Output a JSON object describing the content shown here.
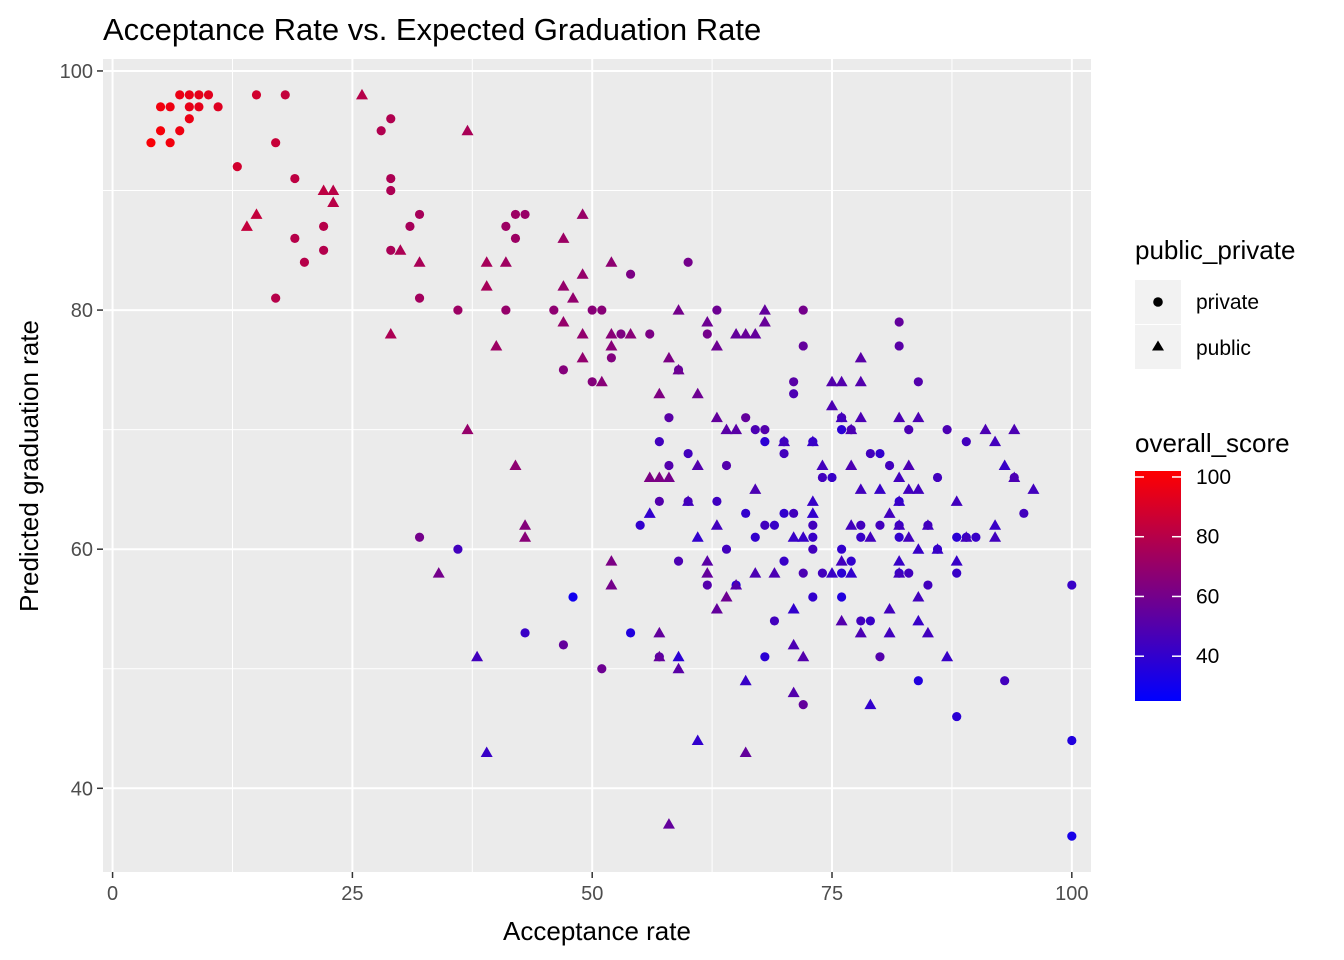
{
  "chart_data": {
    "type": "scatter",
    "title": "Acceptance Rate vs. Expected Graduation Rate",
    "xlabel": "Acceptance rate",
    "ylabel": "Predicted graduation rate",
    "xlim": [
      -1,
      102
    ],
    "ylim": [
      33,
      101
    ],
    "x_ticks": [
      0,
      25,
      50,
      75,
      100
    ],
    "y_ticks": [
      40,
      60,
      80,
      100
    ],
    "grid": true,
    "panel_background": "#ebebeb",
    "legend_position": "right",
    "shape_legend": {
      "title": "public_private",
      "entries": [
        {
          "label": "private",
          "shape": "circle"
        },
        {
          "label": "public",
          "shape": "triangle"
        }
      ]
    },
    "color_legend": {
      "title": "overall_score",
      "low_color": "#0000ff",
      "high_color": "#ff0000",
      "range": [
        25,
        102
      ],
      "ticks": [
        100,
        80,
        60,
        40
      ]
    },
    "private_points": [
      [
        4,
        94,
        100
      ],
      [
        5,
        95,
        99
      ],
      [
        5,
        97,
        98
      ],
      [
        6,
        94,
        98
      ],
      [
        6,
        97,
        97
      ],
      [
        7,
        95,
        97
      ],
      [
        7,
        98,
        96
      ],
      [
        8,
        96,
        96
      ],
      [
        8,
        97,
        95
      ],
      [
        8,
        98,
        95
      ],
      [
        9,
        97,
        94
      ],
      [
        9,
        98,
        94
      ],
      [
        10,
        98,
        93
      ],
      [
        11,
        97,
        92
      ],
      [
        13,
        92,
        88
      ],
      [
        15,
        98,
        88
      ],
      [
        17,
        94,
        85
      ],
      [
        17,
        81,
        80
      ],
      [
        18,
        98,
        84
      ],
      [
        19,
        91,
        82
      ],
      [
        19,
        86,
        80
      ],
      [
        20,
        84,
        80
      ],
      [
        22,
        87,
        80
      ],
      [
        22,
        85,
        79
      ],
      [
        28,
        95,
        78
      ],
      [
        29,
        96,
        78
      ],
      [
        29,
        91,
        77
      ],
      [
        29,
        90,
        77
      ],
      [
        29,
        85,
        76
      ],
      [
        31,
        87,
        75
      ],
      [
        32,
        88,
        75
      ],
      [
        32,
        81,
        74
      ],
      [
        32,
        61,
        60
      ],
      [
        36,
        80,
        72
      ],
      [
        36,
        60,
        45
      ],
      [
        41,
        87,
        72
      ],
      [
        41,
        80,
        70
      ],
      [
        42,
        88,
        72
      ],
      [
        42,
        86,
        72
      ],
      [
        43,
        88,
        71
      ],
      [
        43,
        53,
        42
      ],
      [
        46,
        80,
        68
      ],
      [
        47,
        75,
        65
      ],
      [
        47,
        52,
        55
      ],
      [
        48,
        56,
        30
      ],
      [
        50,
        80,
        66
      ],
      [
        50,
        74,
        65
      ],
      [
        51,
        80,
        66
      ],
      [
        51,
        50,
        58
      ],
      [
        52,
        76,
        64
      ],
      [
        53,
        78,
        63
      ],
      [
        54,
        83,
        62
      ],
      [
        54,
        53,
        35
      ],
      [
        55,
        62,
        40
      ],
      [
        56,
        78,
        62
      ],
      [
        57,
        69,
        45
      ],
      [
        57,
        51,
        52
      ],
      [
        57,
        64,
        50
      ],
      [
        58,
        67,
        50
      ],
      [
        58,
        71,
        52
      ],
      [
        59,
        75,
        55
      ],
      [
        59,
        59,
        48
      ],
      [
        60,
        84,
        60
      ],
      [
        60,
        68,
        45
      ],
      [
        60,
        64,
        48
      ],
      [
        62,
        78,
        60
      ],
      [
        62,
        57,
        50
      ],
      [
        63,
        80,
        58
      ],
      [
        63,
        64,
        44
      ],
      [
        64,
        67,
        50
      ],
      [
        64,
        60,
        45
      ],
      [
        65,
        57,
        35
      ],
      [
        66,
        71,
        55
      ],
      [
        66,
        63,
        40
      ],
      [
        67,
        70,
        48
      ],
      [
        67,
        61,
        40
      ],
      [
        68,
        70,
        50
      ],
      [
        68,
        69,
        38
      ],
      [
        68,
        62,
        45
      ],
      [
        68,
        51,
        38
      ],
      [
        69,
        54,
        45
      ],
      [
        69,
        62,
        42
      ],
      [
        70,
        69,
        42
      ],
      [
        70,
        68,
        45
      ],
      [
        70,
        63,
        40
      ],
      [
        70,
        59,
        42
      ],
      [
        71,
        74,
        52
      ],
      [
        71,
        73,
        48
      ],
      [
        71,
        63,
        45
      ],
      [
        72,
        77,
        55
      ],
      [
        72,
        80,
        60
      ],
      [
        72,
        58,
        48
      ],
      [
        72,
        47,
        55
      ],
      [
        73,
        69,
        40
      ],
      [
        73,
        61,
        42
      ],
      [
        73,
        60,
        45
      ],
      [
        73,
        62,
        45
      ],
      [
        73,
        56,
        40
      ],
      [
        74,
        66,
        45
      ],
      [
        74,
        58,
        45
      ],
      [
        75,
        66,
        42
      ],
      [
        76,
        58,
        38
      ],
      [
        76,
        56,
        35
      ],
      [
        76,
        60,
        40
      ],
      [
        76,
        70,
        38
      ],
      [
        76,
        71,
        48
      ],
      [
        77,
        70,
        48
      ],
      [
        77,
        59,
        40
      ],
      [
        78,
        62,
        45
      ],
      [
        78,
        54,
        45
      ],
      [
        78,
        61,
        42
      ],
      [
        79,
        54,
        42
      ],
      [
        79,
        68,
        45
      ],
      [
        80,
        68,
        40
      ],
      [
        80,
        51,
        50
      ],
      [
        80,
        62,
        45
      ],
      [
        81,
        67,
        45
      ],
      [
        82,
        79,
        55
      ],
      [
        82,
        77,
        52
      ],
      [
        82,
        64,
        38
      ],
      [
        82,
        62,
        42
      ],
      [
        82,
        61,
        40
      ],
      [
        82,
        58,
        40
      ],
      [
        83,
        70,
        48
      ],
      [
        83,
        58,
        45
      ],
      [
        84,
        74,
        50
      ],
      [
        84,
        49,
        35
      ],
      [
        85,
        62,
        45
      ],
      [
        85,
        57,
        45
      ],
      [
        86,
        60,
        40
      ],
      [
        86,
        66,
        45
      ],
      [
        87,
        70,
        48
      ],
      [
        88,
        61,
        38
      ],
      [
        88,
        46,
        38
      ],
      [
        88,
        58,
        42
      ],
      [
        89,
        69,
        45
      ],
      [
        89,
        61,
        40
      ],
      [
        90,
        61,
        42
      ],
      [
        93,
        49,
        45
      ],
      [
        94,
        66,
        48
      ],
      [
        95,
        63,
        45
      ],
      [
        100,
        57,
        42
      ],
      [
        100,
        44,
        35
      ],
      [
        100,
        36,
        32
      ]
    ],
    "public_points": [
      [
        14,
        87,
        84
      ],
      [
        15,
        88,
        84
      ],
      [
        22,
        90,
        82
      ],
      [
        23,
        90,
        81
      ],
      [
        23,
        89,
        81
      ],
      [
        26,
        98,
        80
      ],
      [
        29,
        78,
        77
      ],
      [
        30,
        85,
        77
      ],
      [
        32,
        84,
        76
      ],
      [
        37,
        95,
        76
      ],
      [
        37,
        70,
        70
      ],
      [
        39,
        84,
        75
      ],
      [
        39,
        82,
        75
      ],
      [
        40,
        77,
        72
      ],
      [
        41,
        84,
        73
      ],
      [
        42,
        67,
        68
      ],
      [
        43,
        62,
        65
      ],
      [
        43,
        61,
        66
      ],
      [
        38,
        51,
        45
      ],
      [
        39,
        43,
        42
      ],
      [
        34,
        58,
        60
      ],
      [
        47,
        86,
        72
      ],
      [
        47,
        82,
        70
      ],
      [
        47,
        79,
        70
      ],
      [
        48,
        81,
        69
      ],
      [
        49,
        88,
        71
      ],
      [
        49,
        83,
        70
      ],
      [
        49,
        76,
        69
      ],
      [
        49,
        78,
        69
      ],
      [
        51,
        74,
        66
      ],
      [
        52,
        84,
        68
      ],
      [
        52,
        77,
        66
      ],
      [
        52,
        78,
        66
      ],
      [
        52,
        59,
        62
      ],
      [
        52,
        57,
        60
      ],
      [
        54,
        78,
        66
      ],
      [
        56,
        66,
        62
      ],
      [
        56,
        63,
        40
      ],
      [
        57,
        73,
        63
      ],
      [
        57,
        66,
        62
      ],
      [
        57,
        53,
        55
      ],
      [
        57,
        51,
        55
      ],
      [
        58,
        76,
        62
      ],
      [
        58,
        66,
        60
      ],
      [
        58,
        37,
        55
      ],
      [
        59,
        80,
        60
      ],
      [
        59,
        75,
        58
      ],
      [
        59,
        51,
        38
      ],
      [
        59,
        50,
        52
      ],
      [
        60,
        64,
        45
      ],
      [
        61,
        73,
        58
      ],
      [
        61,
        67,
        50
      ],
      [
        61,
        61,
        40
      ],
      [
        61,
        44,
        40
      ],
      [
        62,
        79,
        58
      ],
      [
        62,
        59,
        52
      ],
      [
        62,
        58,
        55
      ],
      [
        63,
        77,
        58
      ],
      [
        63,
        71,
        55
      ],
      [
        63,
        62,
        45
      ],
      [
        63,
        55,
        55
      ],
      [
        64,
        70,
        52
      ],
      [
        64,
        56,
        58
      ],
      [
        65,
        78,
        55
      ],
      [
        65,
        70,
        52
      ],
      [
        65,
        57,
        50
      ],
      [
        66,
        78,
        56
      ],
      [
        66,
        43,
        55
      ],
      [
        66,
        49,
        42
      ],
      [
        67,
        78,
        55
      ],
      [
        67,
        65,
        48
      ],
      [
        67,
        58,
        48
      ],
      [
        68,
        80,
        55
      ],
      [
        68,
        79,
        56
      ],
      [
        69,
        58,
        48
      ],
      [
        70,
        69,
        45
      ],
      [
        71,
        61,
        42
      ],
      [
        71,
        55,
        40
      ],
      [
        71,
        52,
        48
      ],
      [
        71,
        48,
        50
      ],
      [
        72,
        61,
        42
      ],
      [
        72,
        51,
        50
      ],
      [
        73,
        64,
        42
      ],
      [
        73,
        63,
        40
      ],
      [
        73,
        69,
        42
      ],
      [
        74,
        67,
        45
      ],
      [
        75,
        74,
        50
      ],
      [
        75,
        72,
        48
      ],
      [
        75,
        58,
        42
      ],
      [
        76,
        74,
        50
      ],
      [
        76,
        54,
        50
      ],
      [
        76,
        59,
        45
      ],
      [
        76,
        71,
        45
      ],
      [
        77,
        70,
        48
      ],
      [
        77,
        67,
        48
      ],
      [
        77,
        62,
        45
      ],
      [
        77,
        58,
        40
      ],
      [
        78,
        76,
        52
      ],
      [
        78,
        74,
        50
      ],
      [
        78,
        65,
        45
      ],
      [
        78,
        53,
        48
      ],
      [
        78,
        71,
        48
      ],
      [
        79,
        47,
        40
      ],
      [
        79,
        61,
        45
      ],
      [
        80,
        65,
        42
      ],
      [
        81,
        63,
        45
      ],
      [
        81,
        55,
        45
      ],
      [
        81,
        53,
        45
      ],
      [
        82,
        71,
        48
      ],
      [
        82,
        66,
        45
      ],
      [
        82,
        62,
        45
      ],
      [
        82,
        59,
        42
      ],
      [
        82,
        58,
        45
      ],
      [
        82,
        64,
        42
      ],
      [
        83,
        67,
        48
      ],
      [
        83,
        65,
        45
      ],
      [
        83,
        61,
        45
      ],
      [
        84,
        65,
        45
      ],
      [
        84,
        71,
        48
      ],
      [
        84,
        54,
        42
      ],
      [
        84,
        56,
        45
      ],
      [
        84,
        60,
        42
      ],
      [
        85,
        62,
        45
      ],
      [
        85,
        53,
        45
      ],
      [
        86,
        60,
        42
      ],
      [
        87,
        51,
        42
      ],
      [
        88,
        64,
        45
      ],
      [
        88,
        59,
        42
      ],
      [
        89,
        61,
        45
      ],
      [
        91,
        70,
        48
      ],
      [
        92,
        62,
        42
      ],
      [
        92,
        69,
        45
      ],
      [
        92,
        61,
        45
      ],
      [
        93,
        67,
        42
      ],
      [
        94,
        70,
        48
      ],
      [
        94,
        66,
        48
      ],
      [
        96,
        65,
        45
      ]
    ]
  }
}
